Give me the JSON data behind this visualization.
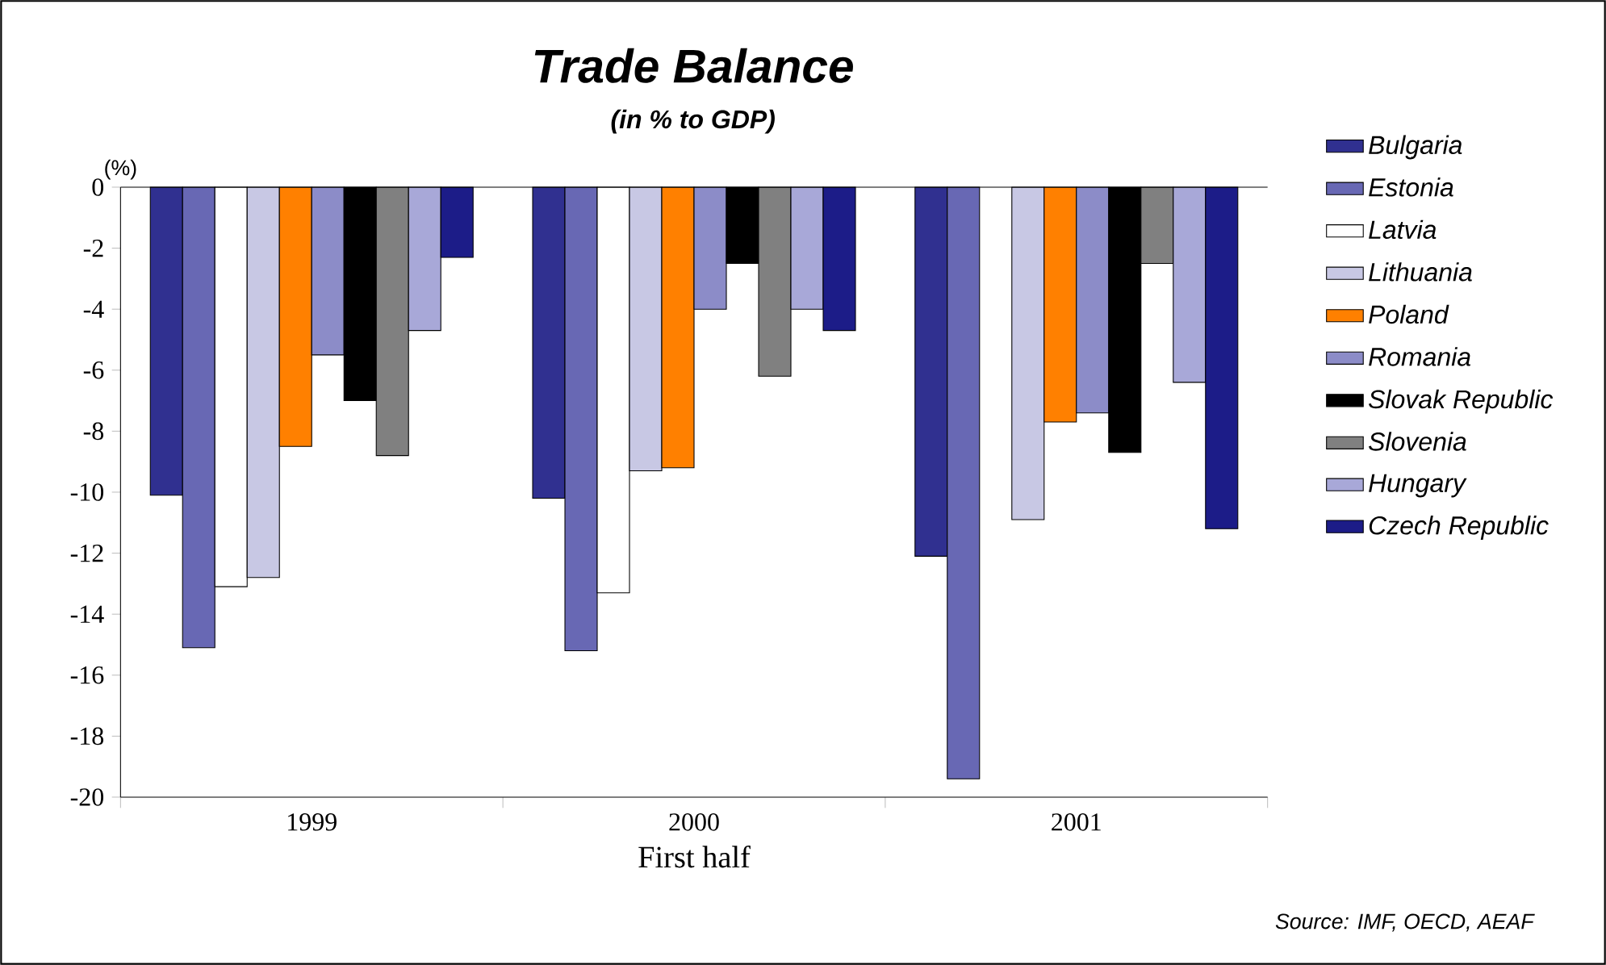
{
  "chart_data": {
    "type": "bar",
    "title": "Trade Balance",
    "subtitle": "(in % to GDP)",
    "xlabel": "First half",
    "ylabel": "(%)",
    "categories": [
      "1999",
      "2000",
      "2001"
    ],
    "series": [
      {
        "name": "Bulgaria",
        "color": "#303090",
        "values": [
          -10.1,
          -10.2,
          -12.1
        ]
      },
      {
        "name": "Estonia",
        "color": "#6868b4",
        "values": [
          -15.1,
          -15.2,
          -19.4
        ]
      },
      {
        "name": "Latvia",
        "color": "#ffffff",
        "values": [
          -13.1,
          -13.3,
          null
        ]
      },
      {
        "name": "Lithuania",
        "color": "#c8c8e4",
        "values": [
          -12.8,
          -9.3,
          -10.9
        ]
      },
      {
        "name": "Poland",
        "color": "#ff8000",
        "values": [
          -8.5,
          -9.2,
          -7.7
        ]
      },
      {
        "name": "Romania",
        "color": "#8c8cc8",
        "values": [
          -5.5,
          -4.0,
          -7.4
        ]
      },
      {
        "name": "Slovak Republic",
        "color": "#000000",
        "values": [
          -7.0,
          -2.5,
          -8.7
        ]
      },
      {
        "name": "Slovenia",
        "color": "#808080",
        "values": [
          -8.8,
          -6.2,
          -2.5
        ]
      },
      {
        "name": "Hungary",
        "color": "#a8a8d8",
        "values": [
          -4.7,
          -4.0,
          -6.4
        ]
      },
      {
        "name": "Czech Republic",
        "color": "#1c1c88",
        "values": [
          -2.3,
          -4.7,
          -11.2
        ]
      }
    ],
    "ylim": [
      -20,
      0
    ],
    "yticks": [
      -20,
      -18,
      -16,
      -14,
      -12,
      -10,
      -8,
      -6,
      -4,
      -2,
      0
    ],
    "legend": "right",
    "annotations": [
      "Source: IMF, OECD, AEAF"
    ]
  }
}
